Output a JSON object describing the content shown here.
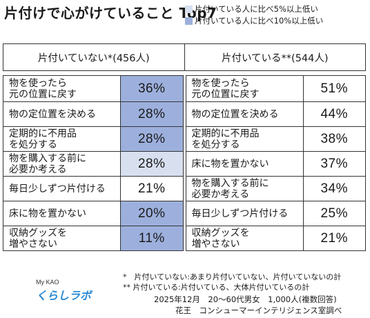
{
  "title": "片付けで心がけていること Top7",
  "legend": [
    {
      "label": "片付いている人に比べ5%以上低い",
      "color": "#d8e0f0"
    },
    {
      "label": "片付いている人に比べ10%以上低い",
      "color": "#9db0dd"
    }
  ],
  "columns": [
    {
      "header": "片付いていない*(456人)",
      "rows": [
        {
          "label": "物を使ったら\n元の位置に戻す",
          "value": "36%",
          "highlight": 2
        },
        {
          "label": "物の定位置を決める",
          "value": "28%",
          "highlight": 2
        },
        {
          "label": "定期的に不用品\nを処分する",
          "value": "28%",
          "highlight": 2
        },
        {
          "label": "物を購入する前に\n必要か考える",
          "value": "28%",
          "highlight": 1
        },
        {
          "label": "毎日少しずつ片付ける",
          "value": "21%",
          "highlight": 0
        },
        {
          "label": "床に物を置かない",
          "value": "20%",
          "highlight": 2
        },
        {
          "label": "収納グッズを\n増やさない",
          "value": "11%",
          "highlight": 2
        }
      ]
    },
    {
      "header": "片付いている**(544人)",
      "rows": [
        {
          "label": "物を使ったら\n元の位置に戻す",
          "value": "51%",
          "highlight": 0
        },
        {
          "label": "物の定位置を決める",
          "value": "44%",
          "highlight": 0
        },
        {
          "label": "定期的に不用品\nを処分する",
          "value": "38%",
          "highlight": 0
        },
        {
          "label": "床に物を置かない",
          "value": "37%",
          "highlight": 0
        },
        {
          "label": "物を購入する前に\n必要か考える",
          "value": "34%",
          "highlight": 0
        },
        {
          "label": "毎日少しずつ片付ける",
          "value": "25%",
          "highlight": 0
        },
        {
          "label": "収納グッズを\n増やさない",
          "value": "21%",
          "highlight": 0
        }
      ]
    }
  ],
  "notes": [
    "*　片付いていない:あまり片付いていない、片付いていないの計",
    "**  片付いている:片付いている、大体片付いているの計"
  ],
  "footer": {
    "survey": "2025年12月　20～60代男女　1,000人(複数回答)",
    "source": "花王　コンシューマーインテリジェンス室調べ"
  },
  "logo": {
    "top": "My KAO",
    "main": "くらしラボ"
  }
}
